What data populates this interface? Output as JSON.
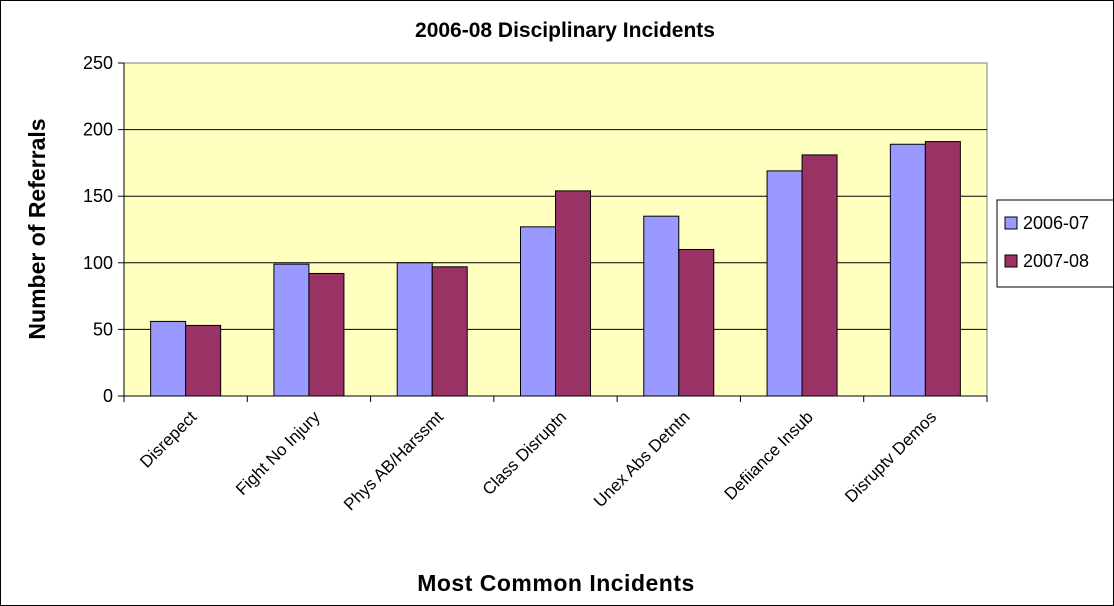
{
  "chart_data": {
    "type": "bar",
    "title": "2006-08 Disciplinary Incidents",
    "xlabel": "Most Common Incidents",
    "ylabel": "Number of Referrals",
    "categories": [
      "Disrepect",
      "Fight No Injury",
      "Phys AB/Harssmt",
      "Class Disruptn",
      "Unex Abs Detntn",
      "Defiiance Insub",
      "Disruptv Demos"
    ],
    "series": [
      {
        "name": "2006-07",
        "color": "#9999ff",
        "values": [
          56,
          99,
          100,
          127,
          135,
          169,
          189
        ]
      },
      {
        "name": "2007-08",
        "color": "#993366",
        "values": [
          53,
          92,
          97,
          154,
          110,
          181,
          191
        ]
      }
    ],
    "ylim": [
      0,
      250
    ],
    "yticks": [
      "0",
      "50",
      "100",
      "150",
      "200",
      "250"
    ],
    "grid": true,
    "plot_background": "#ffffc0",
    "legend_position": "right"
  }
}
